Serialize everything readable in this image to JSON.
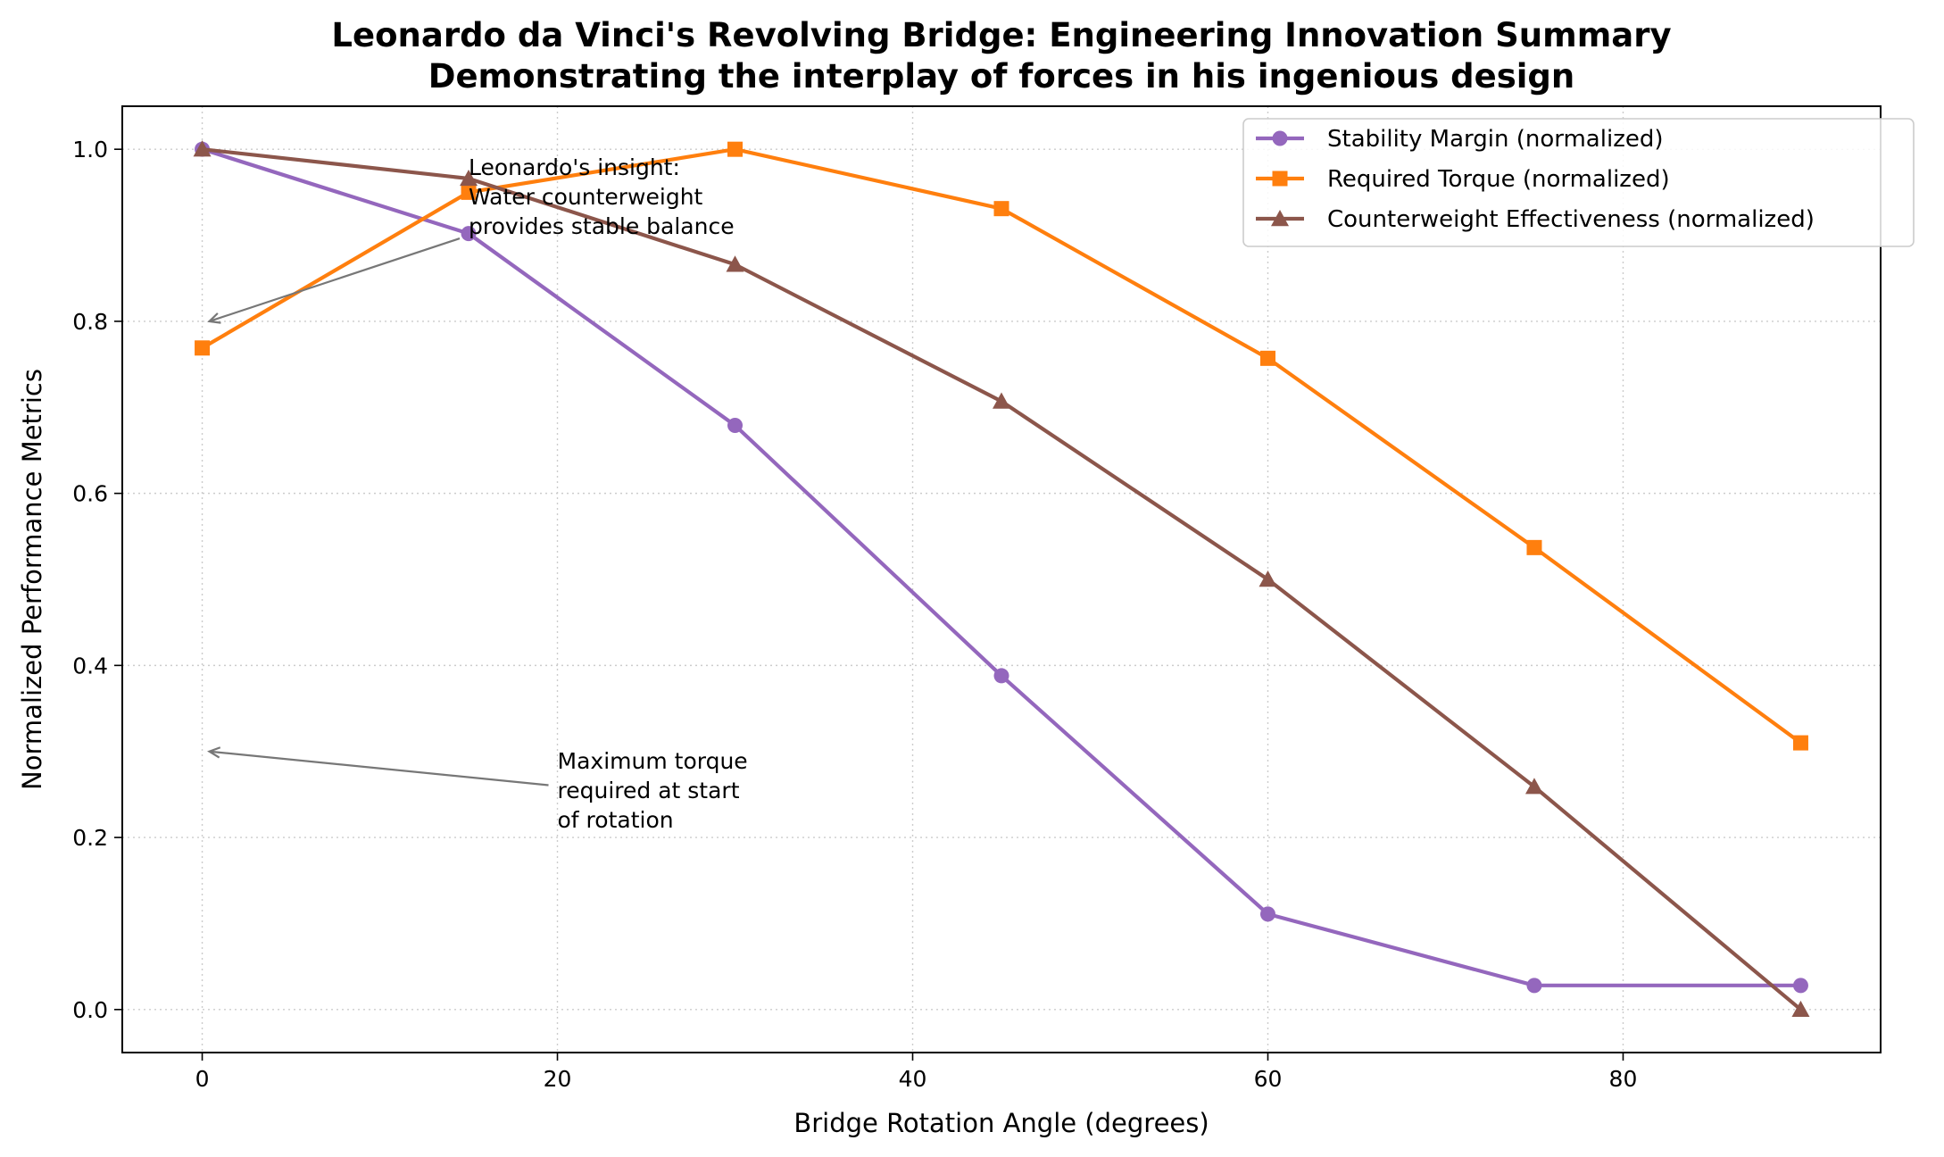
{
  "chart_data": {
    "type": "line",
    "title": "Leonardo da Vinci's Revolving Bridge: Engineering Innovation Summary",
    "subtitle": "Demonstrating the interplay of forces in his ingenious design",
    "xlabel": "Bridge Rotation Angle (degrees)",
    "ylabel": "Normalized Performance Metrics",
    "xlim": [
      -4.5,
      94.5
    ],
    "ylim": [
      -0.05,
      1.05
    ],
    "x_ticks": [
      0,
      20,
      40,
      60,
      80
    ],
    "y_ticks": [
      0.0,
      0.2,
      0.4,
      0.6,
      0.8,
      1.0
    ],
    "x_tick_labels": [
      "0",
      "20",
      "40",
      "60",
      "80"
    ],
    "y_tick_labels": [
      "0.0",
      "0.2",
      "0.4",
      "0.6",
      "0.8",
      "1.0"
    ],
    "grid": true,
    "legend_position": "top-right",
    "x": [
      0,
      15,
      30,
      45,
      60,
      75,
      90
    ],
    "series": [
      {
        "name": "Stability Margin (normalized)",
        "color": "#9467bd",
        "marker": "circle",
        "values": [
          1.0,
          0.902,
          0.679,
          0.388,
          0.111,
          0.028,
          0.028
        ]
      },
      {
        "name": "Required Torque (normalized)",
        "color": "#ff7f0e",
        "marker": "square",
        "values": [
          0.769,
          0.95,
          1.0,
          0.931,
          0.757,
          0.537,
          0.31
        ]
      },
      {
        "name": "Counterweight Effectiveness (normalized)",
        "color": "#8c564b",
        "marker": "triangle",
        "values": [
          1.0,
          0.966,
          0.866,
          0.707,
          0.5,
          0.259,
          0.0
        ]
      }
    ],
    "annotations": [
      {
        "lines": [
          "Leonardo's insight:",
          "Water counterweight",
          "provides stable balance"
        ],
        "text_at": [
          15,
          0.97
        ],
        "arrow_to": [
          0,
          0.8
        ]
      },
      {
        "lines": [
          "Maximum torque",
          "required at start",
          "of rotation"
        ],
        "text_at": [
          20,
          0.28
        ],
        "arrow_to": [
          0,
          0.3
        ]
      }
    ]
  }
}
